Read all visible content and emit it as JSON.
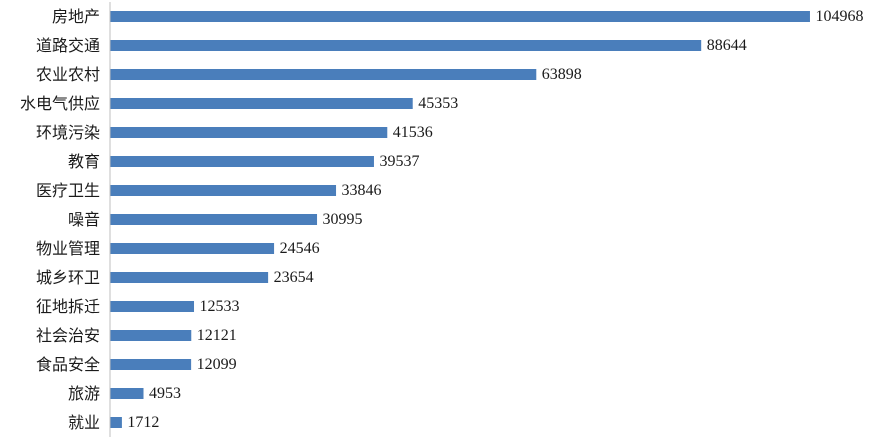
{
  "chart_data": {
    "type": "bar",
    "orientation": "horizontal",
    "categories": [
      "房地产",
      "道路交通",
      "农业农村",
      "水电气供应",
      "环境污染",
      "教育",
      "医疗卫生",
      "噪音",
      "物业管理",
      "城乡环卫",
      "征地拆迁",
      "社会治安",
      "食品安全",
      "旅游",
      "就业"
    ],
    "values": [
      104968,
      88644,
      63898,
      45353,
      41536,
      39537,
      33846,
      30995,
      24546,
      23654,
      12533,
      12121,
      12099,
      4953,
      1712
    ],
    "title": "",
    "xlabel": "",
    "ylabel": "",
    "xlim": [
      0,
      110000
    ],
    "grid": false,
    "legend": "none",
    "bar_color": "#4a7ebb"
  }
}
